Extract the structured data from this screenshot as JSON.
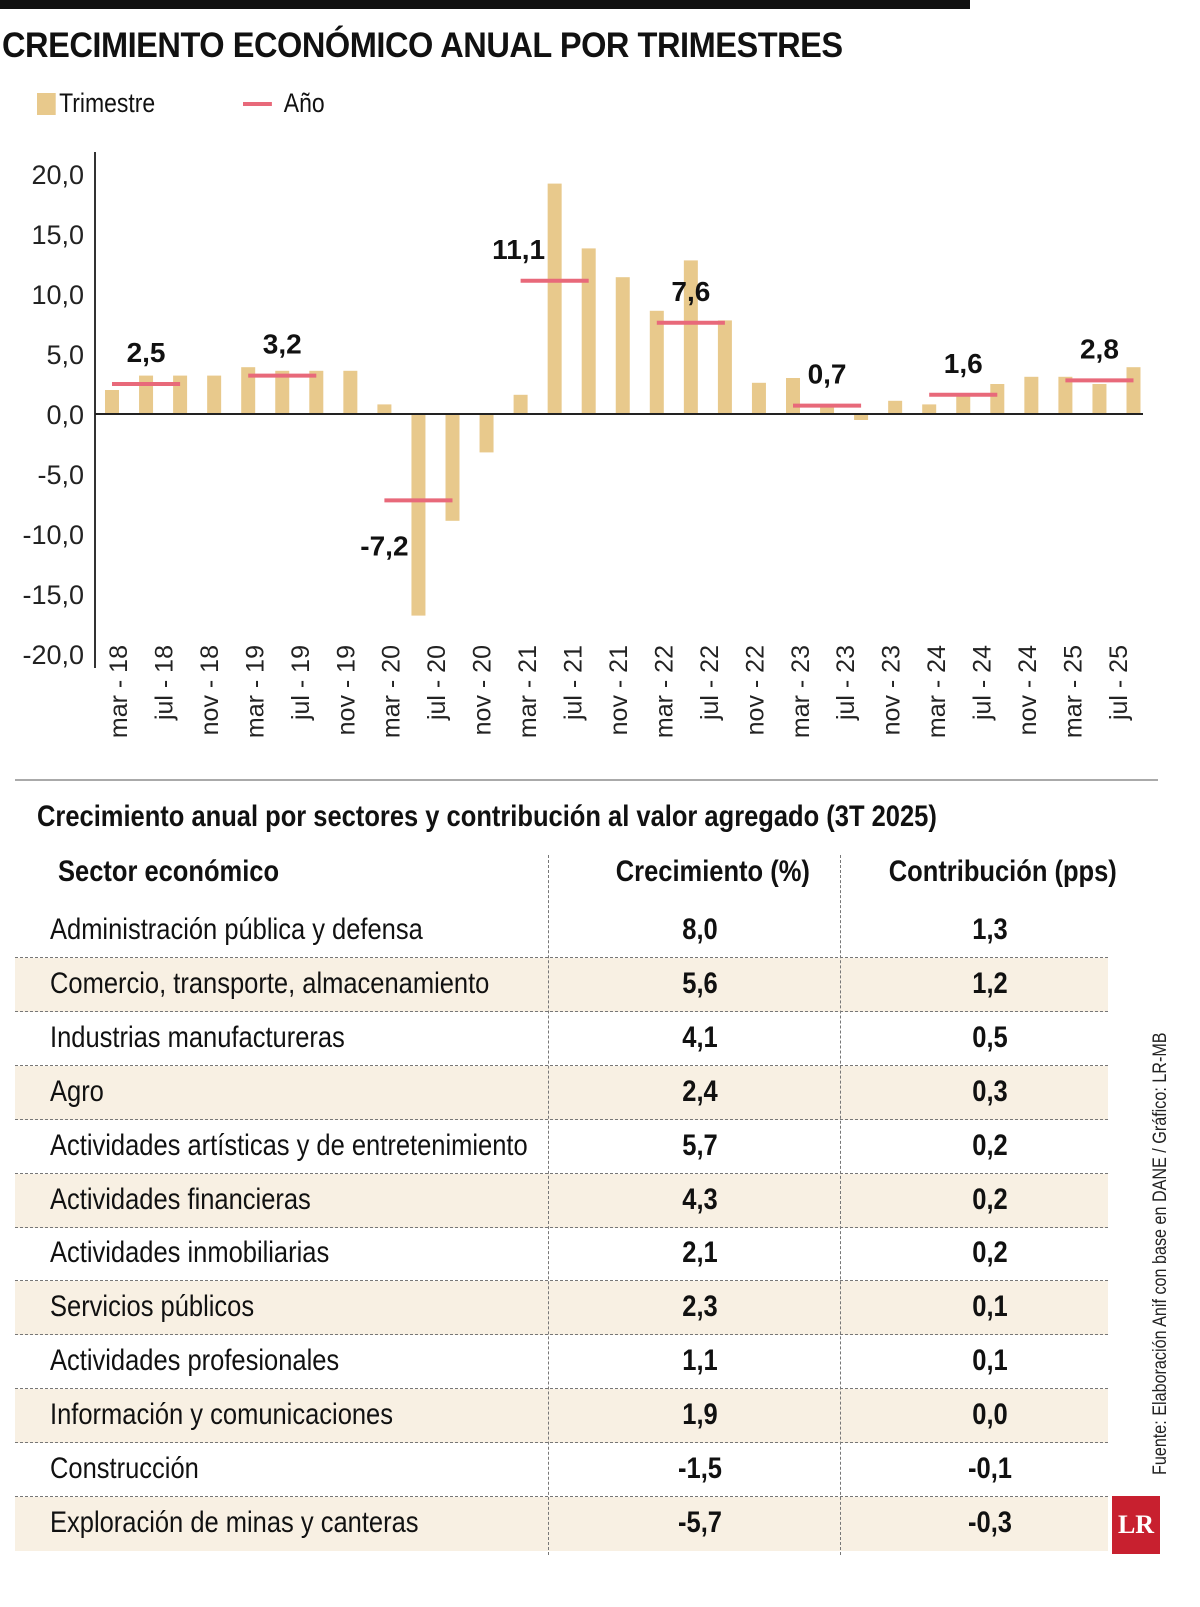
{
  "title": "CRECIMIENTO ECONÓMICO ANUAL POR TRIMESTRES",
  "legend": {
    "bar": "Trimestre",
    "line": "Año"
  },
  "colors": {
    "bar": "#e8c98c",
    "line": "#e8697a",
    "alt_row": "#f8f0e3",
    "logo": "#c8202f"
  },
  "chart_data": {
    "type": "bar",
    "ylim": [
      -20,
      20
    ],
    "yticks": [
      "20,0",
      "15,0",
      "10,0",
      "5,0",
      "0,0",
      "-5,0",
      "-10,0",
      "-15,0",
      "-20,0"
    ],
    "x_tick_labels": [
      "mar - 18",
      "jul - 18",
      "nov - 18",
      "mar - 19",
      "jul - 19",
      "nov - 19",
      "mar - 20",
      "jul - 20",
      "nov - 20",
      "mar - 21",
      "jul - 21",
      "nov - 21",
      "mar - 22",
      "jul - 22",
      "nov - 22",
      "mar - 23",
      "jul - 23",
      "nov - 23",
      "mar - 24",
      "jul - 24",
      "nov - 24",
      "mar - 25",
      "jul - 25"
    ],
    "series": [
      {
        "name": "Trimestre",
        "values": [
          2.0,
          3.2,
          3.2,
          3.2,
          3.9,
          3.6,
          3.6,
          3.6,
          0.8,
          -16.8,
          -8.9,
          -3.2,
          1.6,
          19.2,
          13.8,
          11.4,
          8.6,
          12.8,
          7.8,
          2.6,
          3.0,
          0.7,
          -0.5,
          1.1,
          0.8,
          1.6,
          2.5,
          3.1,
          3.1,
          2.5,
          3.9
        ]
      },
      {
        "name": "Año",
        "years": [
          2018,
          2019,
          2020,
          2021,
          2022,
          2023,
          2024,
          2025
        ],
        "values": [
          2.5,
          3.2,
          -7.2,
          11.1,
          7.6,
          0.7,
          1.6,
          2.8
        ],
        "labels": [
          "2,5",
          "3,2",
          "-7,2",
          "11,1",
          "7,6",
          "0,7",
          "1,6",
          "2,8"
        ]
      }
    ]
  },
  "table": {
    "title": "Crecimiento anual por sectores y contribución al valor agregado (3T 2025)",
    "headers": [
      "Sector económico",
      "Crecimiento (%)",
      "Contribución (pps)"
    ],
    "rows": [
      [
        "Administración pública y defensa",
        "8,0",
        "1,3"
      ],
      [
        "Comercio, transporte, almacenamiento",
        "5,6",
        "1,2"
      ],
      [
        "Industrias manufactureras",
        "4,1",
        "0,5"
      ],
      [
        "Agro",
        "2,4",
        "0,3"
      ],
      [
        "Actividades artísticas y de entretenimiento",
        "5,7",
        "0,2"
      ],
      [
        "Actividades financieras",
        "4,3",
        "0,2"
      ],
      [
        "Actividades inmobiliarias",
        "2,1",
        "0,2"
      ],
      [
        "Servicios públicos",
        "2,3",
        "0,1"
      ],
      [
        "Actividades profesionales",
        "1,1",
        "0,1"
      ],
      [
        "Información y comunicaciones",
        "1,9",
        "0,0"
      ],
      [
        "Construcción",
        "-1,5",
        "-0,1"
      ],
      [
        "Exploración de minas y canteras",
        "-5,7",
        "-0,3"
      ]
    ]
  },
  "source": "Fuente: Elaboración Anif con base en DANE / Gráfico: LR-MB",
  "logo": "LR"
}
